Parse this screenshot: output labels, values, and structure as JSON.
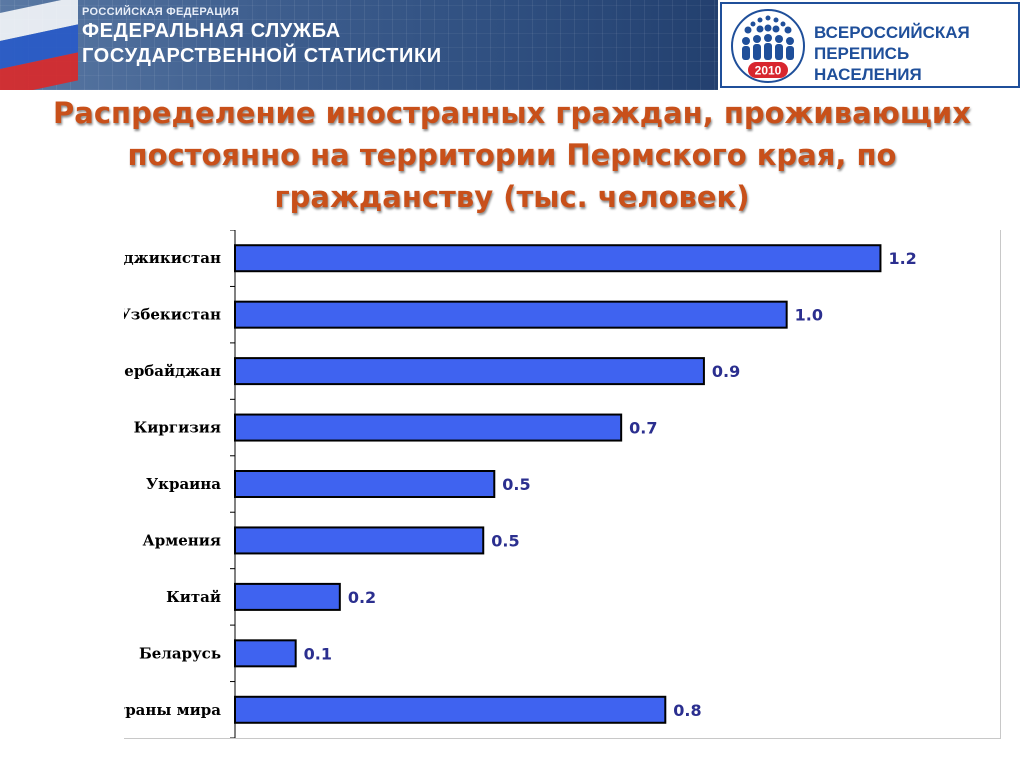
{
  "header": {
    "org_small": "РОССИЙСКАЯ ФЕДЕРАЦИЯ",
    "org_line1": "ФЕДЕРАЛЬНАЯ СЛУЖБА",
    "org_line2": "ГОСУДАРСТВЕННОЙ СТАТИСТИКИ"
  },
  "logo": {
    "line1": "ВСЕРОССИЙСКАЯ",
    "line2": "ПЕРЕПИСЬ НАСЕЛЕНИЯ",
    "year": "2010",
    "color": "#1f4f9a"
  },
  "title": {
    "line1": "Распределение иностранных граждан, проживающих",
    "line2": "постоянно на территории Пермского края, по",
    "line3": "гражданству (тыс. человек)",
    "color": "#c8501a"
  },
  "chart_data": {
    "type": "bar",
    "orientation": "horizontal",
    "title": "Распределение иностранных граждан, проживающих постоянно на территории Пермского края, по гражданству (тыс. человек)",
    "categories": [
      "Таджикистан",
      "Узбекистан",
      "Азербайджан",
      "Киргизия",
      "Украина",
      "Армения",
      "Китай",
      "Беларусь",
      "Другие страны мира"
    ],
    "values": [
      1.2,
      1.0,
      0.9,
      0.7,
      0.5,
      0.5,
      0.2,
      0.1,
      0.8
    ],
    "value_labels": [
      "1.2",
      "1.0",
      "0.9",
      "0.7",
      "0.5",
      "0.5",
      "0.2",
      "0.1",
      "0.8"
    ],
    "exact_values_estimated": [
      1.17,
      1.0,
      0.85,
      0.7,
      0.47,
      0.45,
      0.19,
      0.11,
      0.78
    ],
    "xlim": [
      0,
      1.2
    ],
    "grid": false,
    "legend": "none",
    "bar_color": "#3f63f0",
    "bar_edge_color": "#000000",
    "value_label_color": "#2b2f8f"
  }
}
